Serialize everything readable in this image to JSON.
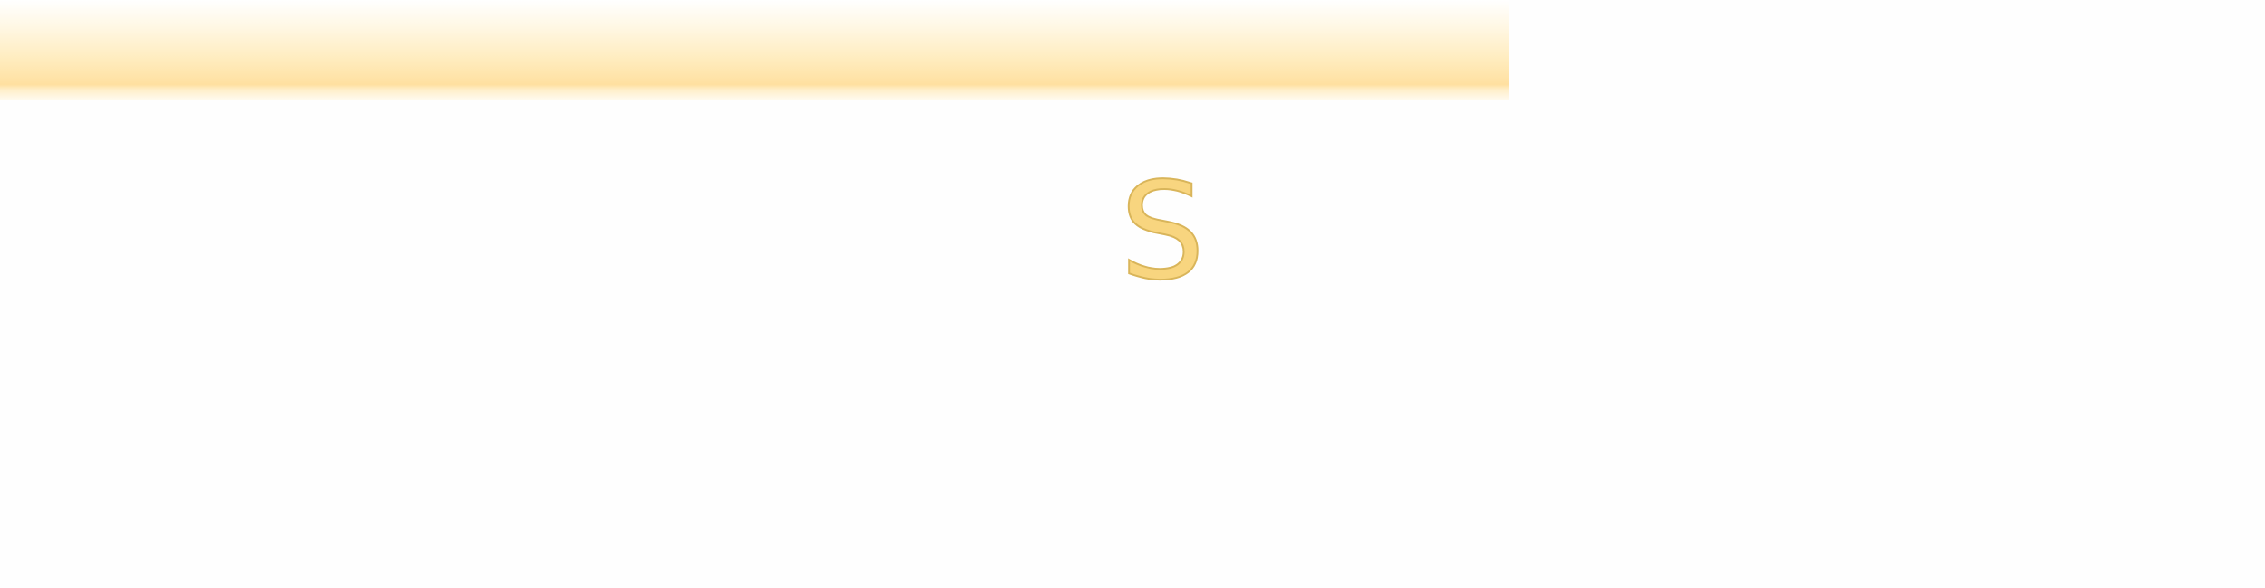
{
  "splash": {
    "letter": "S"
  },
  "colors": {
    "accent": "#F8D57F",
    "accent_stroke": "#D9B55A",
    "bar": "#FFE0A0",
    "background": "#FEFEFE"
  }
}
